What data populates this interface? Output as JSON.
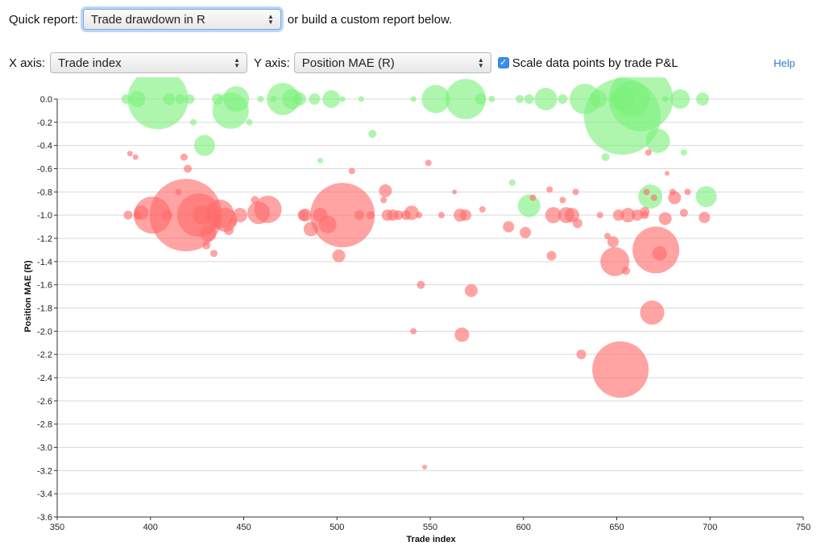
{
  "controls": {
    "quick_report_label": "Quick report:",
    "quick_report_value": "Trade drawdown in R",
    "custom_report_text": "or build a custom report below.",
    "x_axis_label": "X axis:",
    "x_axis_value": "Trade index",
    "y_axis_label": "Y axis:",
    "y_axis_value": "Position MAE (R)",
    "scale_checkbox_label": "Scale data points by trade P&L",
    "scale_checked": true,
    "help_label": "Help"
  },
  "colors": {
    "win": "#7cf07c",
    "loss": "#ff6b6b",
    "grid": "#d9d9d9",
    "axis": "#333333",
    "accent": "#3b8ee6",
    "focus": "#bcd6f7"
  },
  "chart_data": {
    "type": "scatter",
    "xlabel": "Trade index",
    "ylabel": "Position MAE (R)",
    "xlim": [
      350,
      750
    ],
    "ylim": [
      -3.6,
      0.0
    ],
    "x_ticks": [
      "350",
      "400",
      "450",
      "500",
      "550",
      "600",
      "650",
      "700",
      "750"
    ],
    "y_ticks": [
      "0.0",
      "-0.2",
      "-0.4",
      "-0.6",
      "-0.8",
      "-1.0",
      "-1.2",
      "-1.4",
      "-1.6",
      "-1.8",
      "-2.0",
      "-2.2",
      "-2.4",
      "-2.6",
      "-2.8",
      "-3.0",
      "-3.2",
      "-3.4",
      "-3.6"
    ],
    "grid": true,
    "series": [
      {
        "outcome": "win",
        "points": [
          {
            "x": 387,
            "y": 0.0,
            "size": 1.2
          },
          {
            "x": 393,
            "y": 0.0,
            "size": 2.0
          },
          {
            "x": 404,
            "y": 0.0,
            "size": 7.5
          },
          {
            "x": 410,
            "y": 0.0,
            "size": 1.5
          },
          {
            "x": 416,
            "y": 0.0,
            "size": 1.2
          },
          {
            "x": 421,
            "y": 0.0,
            "size": 1.2
          },
          {
            "x": 423,
            "y": -0.2,
            "size": 0.8
          },
          {
            "x": 429,
            "y": -0.4,
            "size": 2.6
          },
          {
            "x": 436,
            "y": 0.0,
            "size": 1.4
          },
          {
            "x": 443,
            "y": -0.1,
            "size": 4.5
          },
          {
            "x": 446,
            "y": 0.0,
            "size": 3.2
          },
          {
            "x": 453,
            "y": -0.2,
            "size": 0.8
          },
          {
            "x": 459,
            "y": 0.0,
            "size": 0.8
          },
          {
            "x": 466,
            "y": 0.0,
            "size": 0.8
          },
          {
            "x": 471,
            "y": 0.0,
            "size": 4.0
          },
          {
            "x": 476,
            "y": 0.0,
            "size": 2.5
          },
          {
            "x": 480,
            "y": 0.0,
            "size": 1.6
          },
          {
            "x": 488,
            "y": 0.0,
            "size": 1.4
          },
          {
            "x": 491,
            "y": -0.53,
            "size": 0.7
          },
          {
            "x": 497,
            "y": 0.0,
            "size": 2.2
          },
          {
            "x": 503,
            "y": 0.0,
            "size": 0.7
          },
          {
            "x": 513,
            "y": 0.0,
            "size": 0.7
          },
          {
            "x": 519,
            "y": -0.3,
            "size": 1.0
          },
          {
            "x": 541,
            "y": 0.0,
            "size": 0.7
          },
          {
            "x": 553,
            "y": 0.0,
            "size": 3.5
          },
          {
            "x": 569,
            "y": 0.0,
            "size": 5.0
          },
          {
            "x": 577,
            "y": 0.0,
            "size": 1.4
          },
          {
            "x": 583,
            "y": 0.0,
            "size": 0.8
          },
          {
            "x": 594,
            "y": -0.72,
            "size": 0.8
          },
          {
            "x": 598,
            "y": 0.0,
            "size": 1.0
          },
          {
            "x": 603,
            "y": 0.0,
            "size": 1.2
          },
          {
            "x": 603,
            "y": -0.92,
            "size": 2.8
          },
          {
            "x": 612,
            "y": 0.0,
            "size": 2.8
          },
          {
            "x": 621,
            "y": 0.0,
            "size": 1.2
          },
          {
            "x": 633,
            "y": 0.0,
            "size": 3.8
          },
          {
            "x": 640,
            "y": 0.0,
            "size": 2.2
          },
          {
            "x": 644,
            "y": -0.5,
            "size": 1.0
          },
          {
            "x": 650,
            "y": 0.0,
            "size": 1.6
          },
          {
            "x": 653,
            "y": 0.0,
            "size": 3.0
          },
          {
            "x": 658,
            "y": 0.0,
            "size": 4.5
          },
          {
            "x": 653,
            "y": -0.15,
            "size": 9.5
          },
          {
            "x": 663,
            "y": 0.0,
            "size": 8.0
          },
          {
            "x": 672,
            "y": -0.36,
            "size": 3.0
          },
          {
            "x": 668,
            "y": -0.84,
            "size": 3.0
          },
          {
            "x": 676,
            "y": 0.0,
            "size": 0.8
          },
          {
            "x": 684,
            "y": 0.0,
            "size": 2.4
          },
          {
            "x": 686,
            "y": -0.46,
            "size": 0.8
          },
          {
            "x": 696,
            "y": 0.0,
            "size": 1.6
          },
          {
            "x": 698,
            "y": -0.84,
            "size": 2.6
          }
        ]
      },
      {
        "outcome": "loss",
        "points": [
          {
            "x": 388,
            "y": -1.0,
            "size": 1.1
          },
          {
            "x": 389,
            "y": -0.47,
            "size": 0.7
          },
          {
            "x": 392,
            "y": -0.5,
            "size": 0.7
          },
          {
            "x": 393,
            "y": -1.0,
            "size": 1.0
          },
          {
            "x": 395,
            "y": -0.98,
            "size": 1.8
          },
          {
            "x": 401,
            "y": -1.0,
            "size": 4.6
          },
          {
            "x": 409,
            "y": -1.0,
            "size": 1.3
          },
          {
            "x": 415,
            "y": -0.8,
            "size": 0.8
          },
          {
            "x": 418,
            "y": -0.5,
            "size": 0.9
          },
          {
            "x": 420,
            "y": -0.6,
            "size": 1.0
          },
          {
            "x": 419,
            "y": -1.0,
            "size": 9.0
          },
          {
            "x": 426,
            "y": -1.0,
            "size": 5.4
          },
          {
            "x": 428,
            "y": -1.0,
            "size": 2.4
          },
          {
            "x": 430,
            "y": -1.26,
            "size": 1.0
          },
          {
            "x": 431,
            "y": -1.16,
            "size": 2.0
          },
          {
            "x": 434,
            "y": -1.33,
            "size": 0.9
          },
          {
            "x": 437,
            "y": -0.99,
            "size": 3.6
          },
          {
            "x": 440,
            "y": -1.04,
            "size": 3.0
          },
          {
            "x": 442,
            "y": -1.13,
            "size": 1.2
          },
          {
            "x": 444,
            "y": -1.06,
            "size": 1.0
          },
          {
            "x": 448,
            "y": -1.0,
            "size": 1.8
          },
          {
            "x": 456,
            "y": -0.87,
            "size": 1.0
          },
          {
            "x": 458,
            "y": -0.98,
            "size": 2.8
          },
          {
            "x": 463,
            "y": -0.95,
            "size": 3.4
          },
          {
            "x": 482,
            "y": -1.0,
            "size": 1.4
          },
          {
            "x": 483,
            "y": -1.0,
            "size": 1.6
          },
          {
            "x": 486,
            "y": -1.12,
            "size": 1.8
          },
          {
            "x": 491,
            "y": -1.0,
            "size": 1.8
          },
          {
            "x": 495,
            "y": -1.08,
            "size": 2.2
          },
          {
            "x": 501,
            "y": -1.35,
            "size": 1.6
          },
          {
            "x": 503,
            "y": -1.0,
            "size": 8.0
          },
          {
            "x": 508,
            "y": -0.62,
            "size": 0.8
          },
          {
            "x": 512,
            "y": -1.0,
            "size": 1.2
          },
          {
            "x": 518,
            "y": -1.0,
            "size": 1.0
          },
          {
            "x": 525,
            "y": -0.87,
            "size": 0.8
          },
          {
            "x": 526,
            "y": -0.79,
            "size": 1.6
          },
          {
            "x": 527,
            "y": -1.0,
            "size": 1.4
          },
          {
            "x": 530,
            "y": -1.0,
            "size": 1.4
          },
          {
            "x": 533,
            "y": -1.0,
            "size": 1.2
          },
          {
            "x": 537,
            "y": -1.0,
            "size": 1.2
          },
          {
            "x": 540,
            "y": -0.98,
            "size": 1.8
          },
          {
            "x": 541,
            "y": -2.0,
            "size": 0.8
          },
          {
            "x": 544,
            "y": -1.0,
            "size": 0.8
          },
          {
            "x": 545,
            "y": -1.6,
            "size": 1.0
          },
          {
            "x": 547,
            "y": -3.17,
            "size": 0.6
          },
          {
            "x": 549,
            "y": -0.55,
            "size": 0.8
          },
          {
            "x": 556,
            "y": -1.0,
            "size": 0.8
          },
          {
            "x": 563,
            "y": -0.8,
            "size": 0.6
          },
          {
            "x": 566,
            "y": -1.0,
            "size": 1.6
          },
          {
            "x": 567,
            "y": -2.03,
            "size": 1.8
          },
          {
            "x": 569,
            "y": -1.0,
            "size": 1.4
          },
          {
            "x": 572,
            "y": -1.65,
            "size": 1.6
          },
          {
            "x": 578,
            "y": -0.95,
            "size": 0.8
          },
          {
            "x": 592,
            "y": -1.1,
            "size": 1.4
          },
          {
            "x": 601,
            "y": -1.15,
            "size": 1.4
          },
          {
            "x": 605,
            "y": -0.85,
            "size": 0.8
          },
          {
            "x": 614,
            "y": -0.78,
            "size": 0.8
          },
          {
            "x": 615,
            "y": -1.35,
            "size": 1.2
          },
          {
            "x": 616,
            "y": -1.0,
            "size": 2.0
          },
          {
            "x": 621,
            "y": -0.87,
            "size": 0.8
          },
          {
            "x": 623,
            "y": -1.0,
            "size": 2.0
          },
          {
            "x": 626,
            "y": -1.0,
            "size": 1.8
          },
          {
            "x": 628,
            "y": -0.8,
            "size": 0.8
          },
          {
            "x": 629,
            "y": -1.07,
            "size": 1.2
          },
          {
            "x": 631,
            "y": -2.2,
            "size": 1.2
          },
          {
            "x": 641,
            "y": -1.0,
            "size": 0.8
          },
          {
            "x": 645,
            "y": -1.18,
            "size": 0.8
          },
          {
            "x": 648,
            "y": -1.23,
            "size": 1.4
          },
          {
            "x": 649,
            "y": -1.4,
            "size": 3.6
          },
          {
            "x": 651,
            "y": -1.0,
            "size": 1.4
          },
          {
            "x": 652,
            "y": -2.33,
            "size": 7.0
          },
          {
            "x": 655,
            "y": -1.48,
            "size": 1.0
          },
          {
            "x": 656,
            "y": -1.0,
            "size": 1.8
          },
          {
            "x": 661,
            "y": -1.0,
            "size": 1.4
          },
          {
            "x": 665,
            "y": -0.97,
            "size": 1.2
          },
          {
            "x": 665,
            "y": -1.0,
            "size": 1.0
          },
          {
            "x": 666,
            "y": -0.8,
            "size": 0.8
          },
          {
            "x": 667,
            "y": -0.46,
            "size": 0.8
          },
          {
            "x": 669,
            "y": -1.84,
            "size": 3.0
          },
          {
            "x": 670,
            "y": -0.85,
            "size": 0.8
          },
          {
            "x": 671,
            "y": -1.3,
            "size": 5.8
          },
          {
            "x": 673,
            "y": -1.33,
            "size": 1.8
          },
          {
            "x": 676,
            "y": -1.03,
            "size": 1.6
          },
          {
            "x": 677,
            "y": -0.64,
            "size": 0.6
          },
          {
            "x": 680,
            "y": -0.8,
            "size": 0.8
          },
          {
            "x": 681,
            "y": -0.85,
            "size": 1.6
          },
          {
            "x": 686,
            "y": -0.98,
            "size": 1.0
          },
          {
            "x": 688,
            "y": -0.8,
            "size": 0.8
          },
          {
            "x": 697,
            "y": -1.02,
            "size": 1.4
          }
        ]
      }
    ]
  }
}
